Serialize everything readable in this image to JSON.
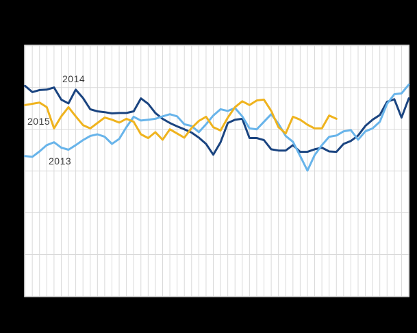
{
  "page": {
    "background_color": "#000000",
    "plot_background_color": "#ffffff",
    "gridline_color": "#d9d9d9",
    "label_text_color": "#3b3b3b"
  },
  "labels": {
    "series_2014": "2014",
    "series_2015": "2015",
    "series_2013": "2013"
  },
  "chart_data": {
    "type": "line",
    "title": "",
    "xlabel": "",
    "ylabel": "",
    "x_axis": {
      "unit": "week",
      "min": 1,
      "max": 54,
      "tick_labels_visible": false,
      "gridline_every": 1
    },
    "y_axis": {
      "min": 0,
      "max": 60,
      "tick_labels_visible": false,
      "gridline_every": 10
    },
    "grid": true,
    "legend": "inline-labels",
    "series": [
      {
        "name": "2014",
        "color": "#1a4480",
        "label": "2014",
        "start_week": 1,
        "values": [
          50.4,
          48.9,
          49.4,
          49.5,
          50.0,
          47.1,
          46.2,
          49.5,
          47.5,
          44.8,
          44.3,
          44.1,
          43.8,
          43.9,
          43.9,
          44.3,
          47.4,
          46.1,
          43.9,
          42.5,
          41.5,
          40.7,
          40.0,
          39.2,
          38.0,
          36.5,
          33.9,
          36.9,
          41.5,
          42.3,
          42.5,
          37.9,
          37.9,
          37.4,
          35.2,
          34.9,
          34.9,
          36.2,
          34.6,
          34.6,
          35.2,
          35.6,
          34.7,
          34.6,
          36.5,
          37.2,
          38.5,
          40.8,
          42.3,
          43.4,
          46.6,
          47.2,
          42.8,
          47.4
        ]
      },
      {
        "name": "2013",
        "color": "#68b4ea",
        "label": "2013",
        "start_week": 1,
        "values": [
          33.6,
          33.4,
          34.7,
          36.2,
          36.9,
          35.6,
          35.1,
          36.2,
          37.4,
          38.4,
          38.8,
          38.2,
          36.5,
          37.7,
          40.5,
          43.0,
          42.1,
          42.3,
          42.5,
          43.1,
          43.6,
          43.1,
          41.2,
          40.8,
          39.3,
          41.2,
          43.3,
          44.8,
          44.4,
          45.1,
          43.1,
          40.2,
          40.0,
          41.8,
          43.6,
          41.3,
          38.4,
          37.0,
          33.6,
          30.1,
          33.8,
          36.2,
          38.2,
          38.5,
          39.5,
          39.8,
          37.5,
          39.5,
          40.2,
          41.8,
          46.1,
          48.4,
          48.6,
          50.7
        ]
      },
      {
        "name": "2015",
        "color": "#efb31e",
        "label": "2015",
        "start_week": 1,
        "values": [
          45.8,
          46.1,
          46.4,
          45.3,
          40.2,
          43.1,
          45.3,
          43.1,
          41.0,
          40.2,
          41.5,
          42.8,
          42.3,
          41.6,
          42.5,
          41.8,
          38.8,
          37.9,
          39.3,
          37.5,
          40.0,
          39.0,
          38.0,
          40.3,
          42.0,
          43.0,
          40.5,
          39.7,
          42.8,
          45.3,
          46.7,
          45.8,
          46.9,
          47.1,
          44.4,
          40.5,
          39.0,
          43.0,
          42.3,
          41.1,
          40.2,
          40.2,
          43.3,
          42.5
        ]
      }
    ],
    "annotations": [
      {
        "text": "2014",
        "near_week": 7,
        "near_value": 52.5
      },
      {
        "text": "2015",
        "near_week": 2,
        "near_value": 42.5
      },
      {
        "text": "2013",
        "near_week": 5,
        "near_value": 32.5
      }
    ],
    "draw_order": [
      "2014",
      "2013",
      "2015"
    ]
  }
}
